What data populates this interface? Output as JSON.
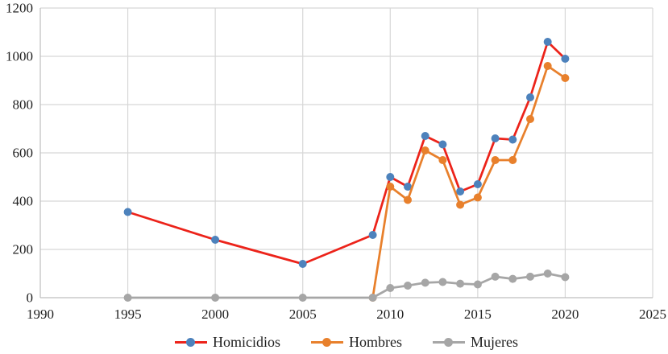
{
  "chart_data": {
    "type": "line",
    "title": "",
    "xlabel": "",
    "ylabel": "",
    "x": [
      1995,
      2000,
      2005,
      2009,
      2010,
      2011,
      2012,
      2013,
      2014,
      2015,
      2016,
      2017,
      2018,
      2019,
      2020
    ],
    "series": [
      {
        "name": "Homicidios",
        "line_color": "#ec231a",
        "marker_color": "#4d82bc",
        "values": [
          355,
          240,
          140,
          260,
          500,
          460,
          670,
          635,
          440,
          470,
          660,
          655,
          830,
          1060,
          990
        ]
      },
      {
        "name": "Hombres",
        "line_color": "#e8802c",
        "marker_color": "#e8802c",
        "values": [
          null,
          null,
          null,
          0,
          460,
          405,
          610,
          570,
          385,
          415,
          570,
          570,
          740,
          960,
          910
        ]
      },
      {
        "name": "Mujeres",
        "line_color": "#a6a6a6",
        "marker_color": "#a6a6a6",
        "values": [
          0,
          0,
          0,
          0,
          40,
          50,
          62,
          65,
          58,
          55,
          87,
          78,
          87,
          100,
          85
        ]
      }
    ],
    "x_ticks": [
      1990,
      1995,
      2000,
      2005,
      2010,
      2015,
      2020,
      2025
    ],
    "y_ticks": [
      0,
      200,
      400,
      600,
      800,
      1000,
      1200
    ],
    "xlim": [
      1990,
      2025
    ],
    "ylim": [
      0,
      1200
    ],
    "grid": true,
    "legend_position": "bottom",
    "colors": {
      "grid": "#d7d7d7",
      "axis": "#bfbfbf",
      "tick_text": "#1f1f1f",
      "background": "#ffffff"
    }
  }
}
